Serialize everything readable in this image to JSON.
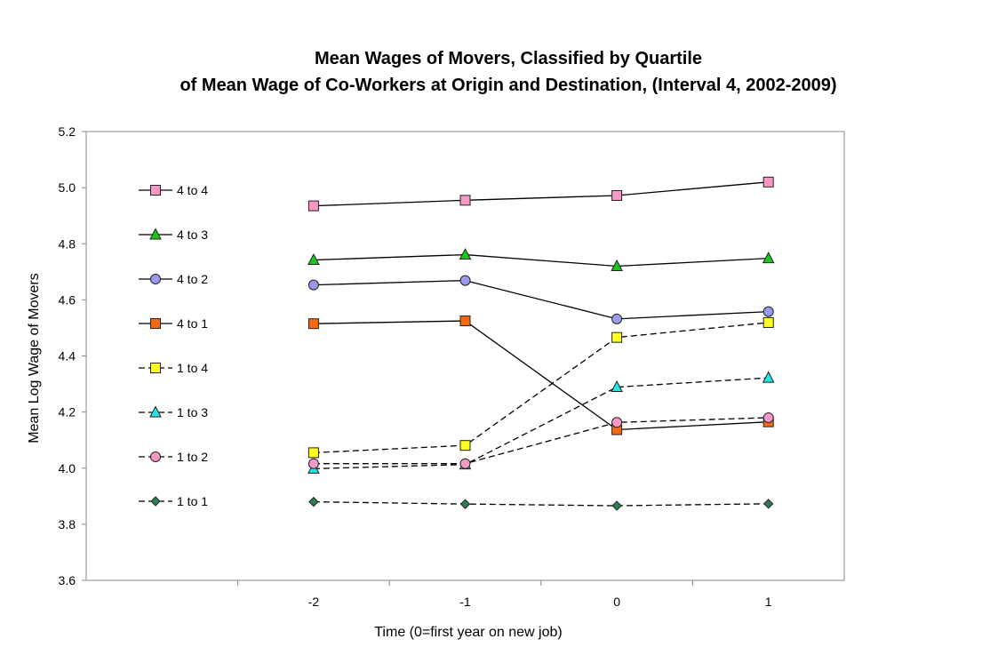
{
  "chart_data": {
    "type": "line",
    "title_lines": [
      "Mean Wages of Movers, Classified by Quartile",
      "of Mean Wage of Co-Workers at Origin and Destination, (Interval 4, 2002-2009)"
    ],
    "xlabel": "Time (0=first year on new job)",
    "ylabel": "Mean Log Wage of Movers",
    "x_categories": [
      "-2",
      "-1",
      "0",
      "1"
    ],
    "y_ticks": [
      "5.2",
      "5.0",
      "4.8",
      "4.6",
      "4.4",
      "4.2",
      "4.0",
      "3.8",
      "3.6"
    ],
    "ylim": [
      3.6,
      5.2
    ],
    "legend_position": "left",
    "series": [
      {
        "name": "4 to 4",
        "values": [
          4.935,
          4.955,
          4.972,
          5.02
        ],
        "color": "#f799c6",
        "marker": "square",
        "dash": false
      },
      {
        "name": "4 to 3",
        "values": [
          4.742,
          4.761,
          4.72,
          4.748
        ],
        "color": "#18c818",
        "marker": "triangle",
        "dash": false
      },
      {
        "name": "4 to 2",
        "values": [
          4.653,
          4.669,
          4.532,
          4.558
        ],
        "color": "#9a9aec",
        "marker": "circle",
        "dash": false
      },
      {
        "name": "4 to 1",
        "values": [
          4.515,
          4.525,
          4.137,
          4.165
        ],
        "color": "#f56a10",
        "marker": "square",
        "dash": false
      },
      {
        "name": "1 to 4",
        "values": [
          4.055,
          4.081,
          4.466,
          4.519
        ],
        "color": "#ffff22",
        "marker": "square",
        "dash": true
      },
      {
        "name": "1 to 3",
        "values": [
          3.998,
          4.013,
          4.289,
          4.322
        ],
        "color": "#20e6e6",
        "marker": "triangle",
        "dash": true
      },
      {
        "name": "1 to 2",
        "values": [
          4.016,
          4.016,
          4.163,
          4.18
        ],
        "color": "#f799c6",
        "marker": "circle",
        "dash": true
      },
      {
        "name": "1 to 1",
        "values": [
          3.88,
          3.872,
          3.866,
          3.873
        ],
        "color": "#2e7d52",
        "marker": "diamond",
        "dash": true
      }
    ]
  }
}
